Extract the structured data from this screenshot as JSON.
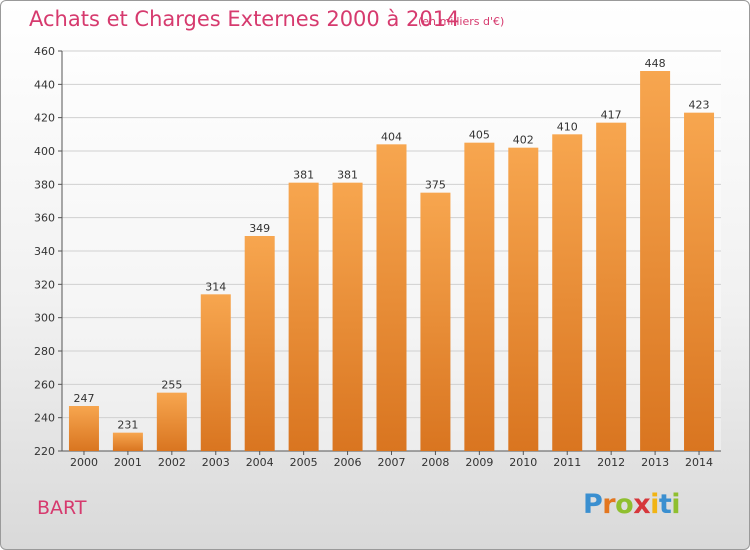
{
  "title": "Achats et Charges Externes 2000 à 2014",
  "subtitle": "(en milliers d'€)",
  "place": "BART",
  "logo": {
    "letters": [
      "P",
      "r",
      "o",
      "x",
      "i",
      "t",
      "i"
    ],
    "colors": [
      "#3a8fd0",
      "#e3761f",
      "#8fbf2f",
      "#d6363b",
      "#f1b414",
      "#3a8fd0",
      "#8fbf2f"
    ]
  },
  "colors": {
    "bar_light": "#f7a64f",
    "bar_dark": "#d97520",
    "title": "#d63a6e",
    "grid": "#d0d0d0"
  },
  "chart_data": {
    "type": "bar",
    "categories": [
      "2000",
      "2001",
      "2002",
      "2003",
      "2004",
      "2005",
      "2006",
      "2007",
      "2008",
      "2009",
      "2010",
      "2011",
      "2012",
      "2013",
      "2014"
    ],
    "values": [
      247,
      231,
      255,
      314,
      349,
      381,
      381,
      404,
      375,
      405,
      402,
      410,
      417,
      448,
      423
    ],
    "ylim": [
      220,
      460
    ],
    "yticks": [
      220,
      240,
      260,
      280,
      300,
      320,
      340,
      360,
      380,
      400,
      420,
      440,
      460
    ],
    "grid": true
  }
}
